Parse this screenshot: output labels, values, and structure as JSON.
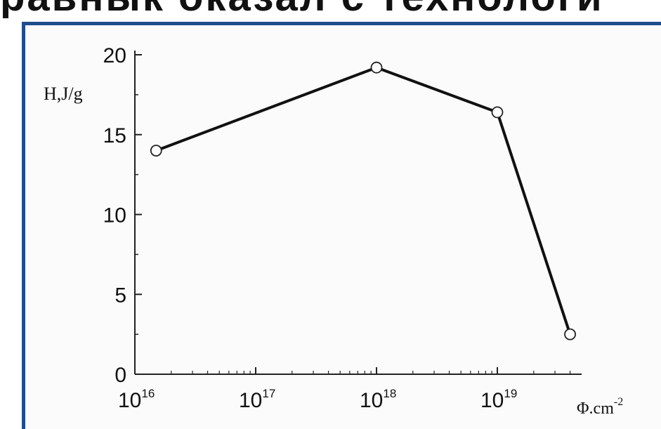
{
  "header_fragment": "равнык   оказал   с   технологи",
  "chart_data": {
    "type": "line",
    "x": [
      1.5e+16,
      1e+18,
      1e+19,
      4e+19
    ],
    "values": [
      14,
      19.2,
      16.4,
      2.5
    ],
    "ylabel": "H,J/g",
    "xlabel_base": "Φ.cm",
    "xlabel_exp": "-2",
    "xscale": "log",
    "xlim": [
      1e+16,
      5e+19
    ],
    "ylim": [
      0,
      20
    ],
    "y_ticks": [
      0,
      5,
      10,
      15,
      20
    ],
    "x_ticks": [
      {
        "value": 1e+16,
        "base": "10",
        "exp": "16"
      },
      {
        "value": 1e+17,
        "base": "10",
        "exp": "17"
      },
      {
        "value": 1e+18,
        "base": "10",
        "exp": "18"
      },
      {
        "value": 1e+19,
        "base": "10",
        "exp": "19"
      }
    ],
    "grid": false,
    "colors": {
      "line": "#111111",
      "marker_fill": "#ffffff",
      "frame": "#1f4e8c"
    }
  }
}
